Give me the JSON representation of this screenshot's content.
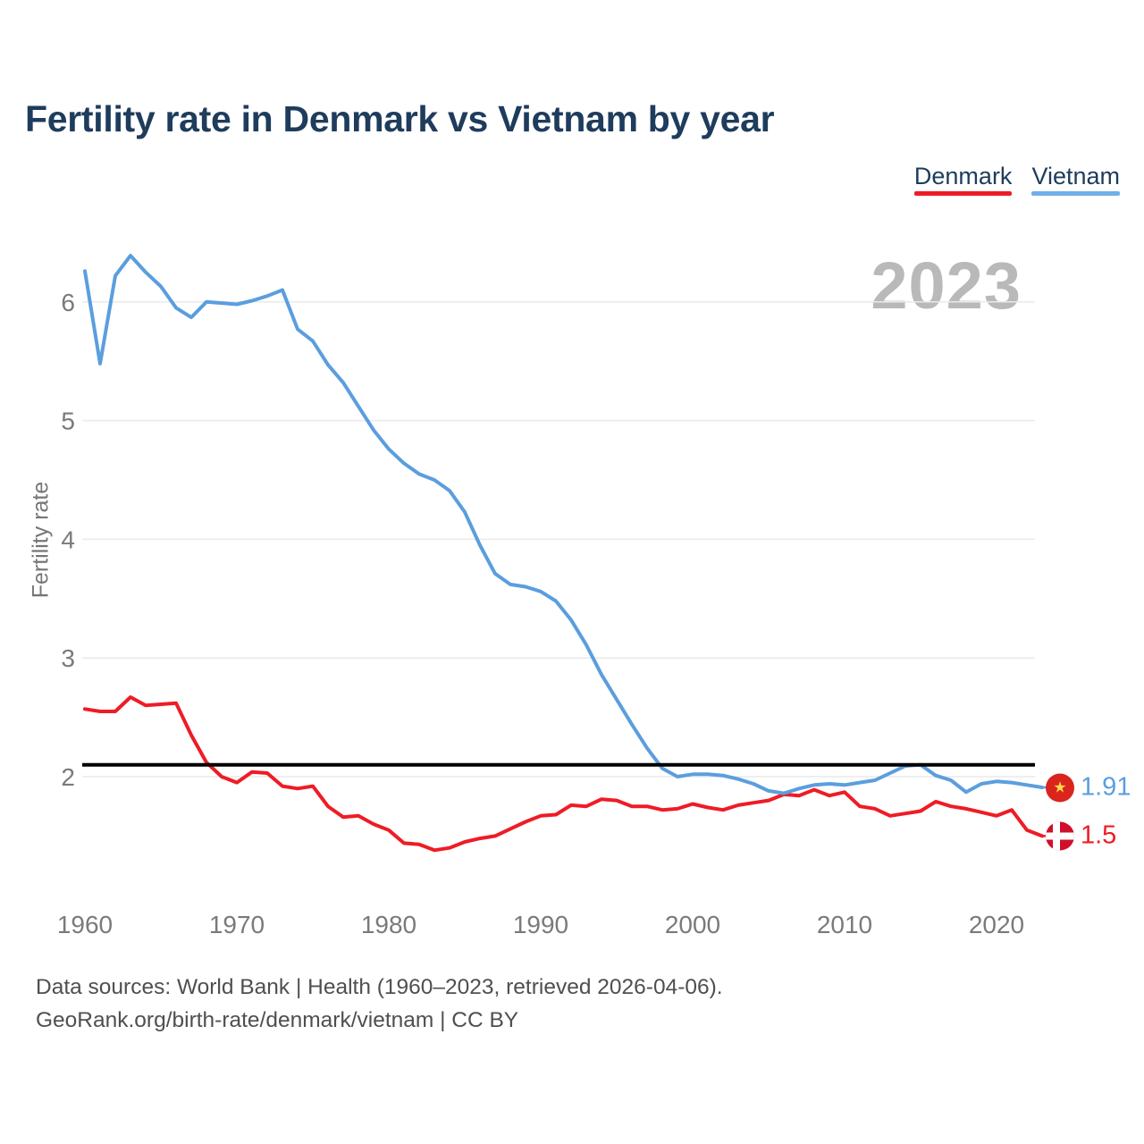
{
  "header": {
    "title": "Fertility rate in Denmark vs Vietnam by year"
  },
  "legend": {
    "items": [
      {
        "label": "Denmark",
        "color": "#ee1c25"
      },
      {
        "label": "Vietnam",
        "color": "#6fb0e8"
      }
    ]
  },
  "watermark_year": "2023",
  "footer": {
    "line1": "Data sources: World Bank | Health (1960–2023, retrieved 2026-04-06).",
    "line2": "GeoRank.org/birth-rate/denmark/vietnam | CC BY"
  },
  "chart_data": {
    "type": "line",
    "title": "Fertility rate in Denmark vs Vietnam by year",
    "ylabel": "Fertility rate",
    "xlabel": "",
    "x_years": {
      "start": 1960,
      "end": 2023,
      "step": 1
    },
    "xticks": [
      1960,
      1970,
      1980,
      1990,
      2000,
      2010,
      2020
    ],
    "yticks": [
      2,
      3,
      4,
      5,
      6
    ],
    "ylim": [
      1.3,
      6.5
    ],
    "grid": true,
    "legend_position": "top-right",
    "reference_line": {
      "value": 2.1,
      "color": "#000000"
    },
    "series": [
      {
        "name": "Denmark",
        "color": "#ee1c25",
        "values": [
          2.57,
          2.55,
          2.55,
          2.67,
          2.6,
          2.61,
          2.62,
          2.35,
          2.12,
          2.0,
          1.95,
          2.04,
          2.03,
          1.92,
          1.9,
          1.92,
          1.75,
          1.66,
          1.67,
          1.6,
          1.55,
          1.44,
          1.43,
          1.38,
          1.4,
          1.45,
          1.48,
          1.5,
          1.56,
          1.62,
          1.67,
          1.68,
          1.76,
          1.75,
          1.81,
          1.8,
          1.75,
          1.75,
          1.72,
          1.73,
          1.77,
          1.74,
          1.72,
          1.76,
          1.78,
          1.8,
          1.85,
          1.84,
          1.89,
          1.84,
          1.87,
          1.75,
          1.73,
          1.67,
          1.69,
          1.71,
          1.79,
          1.75,
          1.73,
          1.7,
          1.67,
          1.72,
          1.55,
          1.5
        ]
      },
      {
        "name": "Vietnam",
        "color": "#5b9ede",
        "values": [
          6.26,
          5.48,
          6.22,
          6.39,
          6.25,
          6.13,
          5.95,
          5.87,
          6.0,
          5.99,
          5.98,
          6.01,
          6.05,
          6.1,
          5.77,
          5.67,
          5.47,
          5.32,
          5.12,
          4.92,
          4.76,
          4.64,
          4.55,
          4.5,
          4.41,
          4.23,
          3.95,
          3.71,
          3.62,
          3.6,
          3.56,
          3.48,
          3.32,
          3.11,
          2.86,
          2.65,
          2.44,
          2.24,
          2.07,
          2.0,
          2.02,
          2.02,
          2.01,
          1.98,
          1.94,
          1.88,
          1.86,
          1.9,
          1.93,
          1.94,
          1.93,
          1.95,
          1.97,
          2.03,
          2.09,
          2.1,
          2.01,
          1.97,
          1.87,
          1.94,
          1.96,
          1.95,
          1.93,
          1.91
        ]
      }
    ],
    "end_labels": [
      {
        "series": "Vietnam",
        "text": "1.91",
        "value": 1.91,
        "color": "#5b9ede",
        "flag": "vietnam-flag"
      },
      {
        "series": "Denmark",
        "text": "1.5",
        "value": 1.5,
        "color": "#ee1c25",
        "flag": "denmark-flag"
      }
    ],
    "flags": {
      "vietnam": {
        "background": "#da251d",
        "star": "#ffd94a"
      },
      "denmark": {
        "background": "#d0102a",
        "cross": "#ffffff"
      }
    }
  }
}
